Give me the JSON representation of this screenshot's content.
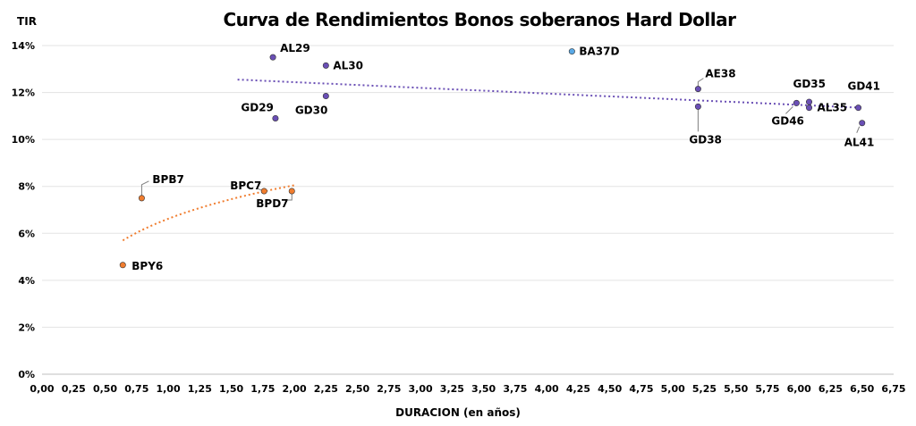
{
  "chart_data": {
    "type": "scatter",
    "title": "Curva de Rendimientos Bonos soberanos Hard Dollar",
    "ylabel": "TIR",
    "xlabel": "DURACION (en años)",
    "xlim": [
      0,
      6.75
    ],
    "ylim": [
      0,
      14
    ],
    "x_ticks": [
      "0,00",
      "0,25",
      "0,50",
      "0,75",
      "1,00",
      "1,25",
      "1,50",
      "1,75",
      "2,00",
      "2,25",
      "2,50",
      "2,75",
      "3,00",
      "3,25",
      "3,50",
      "3,75",
      "4,00",
      "4,25",
      "4,50",
      "4,75",
      "5,00",
      "5,25",
      "5,50",
      "5,75",
      "6,00",
      "6,25",
      "6,50",
      "6,75"
    ],
    "y_ticks": [
      "0%",
      "2%",
      "4%",
      "6%",
      "8%",
      "10%",
      "12%",
      "14%"
    ],
    "grid": "horizontal",
    "colors": {
      "usd_bonds": "#6a4fb5",
      "bpy": "#f07d2f",
      "ba37d": "#5aa9e6",
      "usd_trend": "#1f2f6b",
      "bpy_trend": "#f07d2f"
    },
    "points": [
      {
        "label": "AL29",
        "x": 1.83,
        "y": 13.5,
        "group": "usd_bonds"
      },
      {
        "label": "AL30",
        "x": 2.25,
        "y": 13.15,
        "group": "usd_bonds"
      },
      {
        "label": "GD29",
        "x": 1.85,
        "y": 10.9,
        "group": "usd_bonds"
      },
      {
        "label": "GD30",
        "x": 2.25,
        "y": 11.85,
        "group": "usd_bonds"
      },
      {
        "label": "BA37D",
        "x": 4.2,
        "y": 13.75,
        "group": "ba37d"
      },
      {
        "label": "AE38",
        "x": 5.2,
        "y": 12.15,
        "group": "usd_bonds"
      },
      {
        "label": "GD38",
        "x": 5.2,
        "y": 11.4,
        "group": "usd_bonds"
      },
      {
        "label": "GD35",
        "x": 6.08,
        "y": 11.6,
        "group": "usd_bonds"
      },
      {
        "label": "AL35",
        "x": 6.08,
        "y": 11.35,
        "group": "usd_bonds"
      },
      {
        "label": "GD46",
        "x": 5.98,
        "y": 11.55,
        "group": "usd_bonds"
      },
      {
        "label": "GD41",
        "x": 6.47,
        "y": 11.35,
        "group": "usd_bonds"
      },
      {
        "label": "AL41",
        "x": 6.5,
        "y": 10.7,
        "group": "usd_bonds"
      },
      {
        "label": "BPB7",
        "x": 0.79,
        "y": 7.5,
        "group": "bpy"
      },
      {
        "label": "BPC7",
        "x": 1.76,
        "y": 7.8,
        "group": "bpy"
      },
      {
        "label": "BPD7",
        "x": 1.98,
        "y": 7.8,
        "group": "bpy"
      },
      {
        "label": "BPY6",
        "x": 0.64,
        "y": 4.65,
        "group": "bpy"
      }
    ],
    "trendlines": [
      {
        "group": "usd_bonds",
        "kind": "linear",
        "x": [
          1.55,
          6.5
        ],
        "y": [
          12.55,
          11.35
        ]
      },
      {
        "group": "bpy",
        "kind": "logarithmic",
        "x": [
          0.64,
          2.0
        ],
        "y": [
          5.7,
          8.05
        ]
      }
    ]
  }
}
